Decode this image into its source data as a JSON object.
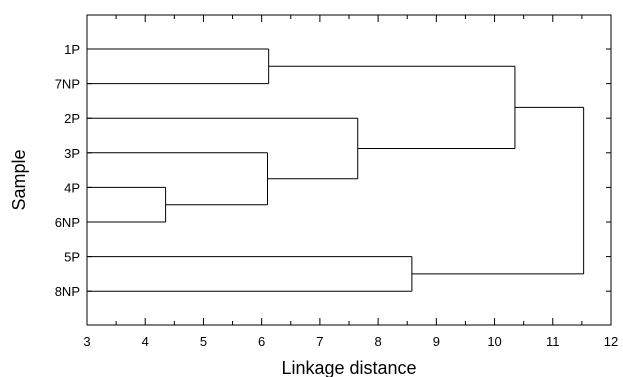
{
  "chart_data": {
    "type": "dendrogram",
    "xlabel": "Linkage distance",
    "ylabel": "Sample",
    "xlim": [
      3,
      12
    ],
    "x_ticks": [
      3,
      4,
      5,
      6,
      7,
      8,
      9,
      10,
      11,
      12
    ],
    "x_tick_labels": [
      "3",
      "4",
      "5",
      "6",
      "7",
      "8",
      "9",
      "10",
      "11",
      "12"
    ],
    "leaves": [
      "1P",
      "7NP",
      "2P",
      "3P",
      "4P",
      "6NP",
      "5P",
      "8NP"
    ],
    "leaf_start_distance": 3,
    "merges": [
      {
        "id": "m1",
        "children": [
          "4P",
          "6NP"
        ],
        "distance": 4.35
      },
      {
        "id": "m2",
        "children": [
          "1P",
          "7NP"
        ],
        "distance": 6.12
      },
      {
        "id": "m3",
        "children": [
          "3P",
          "m1"
        ],
        "distance": 6.1
      },
      {
        "id": "m4",
        "children": [
          "2P",
          "m3"
        ],
        "distance": 7.65
      },
      {
        "id": "m5",
        "children": [
          "5P",
          "8NP"
        ],
        "distance": 8.58
      },
      {
        "id": "m6",
        "children": [
          "m2",
          "m4"
        ],
        "distance": 10.35
      },
      {
        "id": "m7",
        "children": [
          "m6",
          "m5"
        ],
        "distance": 11.53
      }
    ],
    "grid": false,
    "line_color": "#000000",
    "frame_color": "#000000"
  }
}
